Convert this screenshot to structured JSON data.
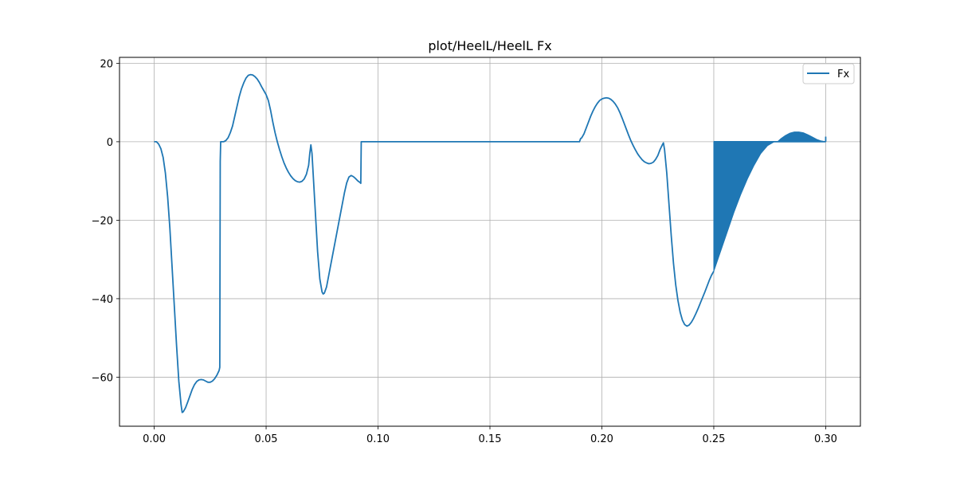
{
  "chart_data": {
    "type": "line",
    "title": "plot/HeelL/HeelL Fx",
    "xlabel": "",
    "ylabel": "",
    "xlim": [
      -0.0155,
      0.3155
    ],
    "ylim": [
      -72.5,
      21.5
    ],
    "grid": true,
    "legend_position": "top-right",
    "x_ticks": [
      0.0,
      0.05,
      0.1,
      0.15,
      0.2,
      0.25,
      0.3
    ],
    "x_tick_labels": [
      "0.00",
      "0.05",
      "0.10",
      "0.15",
      "0.20",
      "0.25",
      "0.30"
    ],
    "y_ticks": [
      20,
      0,
      -20,
      -40,
      -60
    ],
    "y_tick_labels": [
      "20",
      "0",
      "−20",
      "−40",
      "−60"
    ],
    "series": [
      {
        "name": "Fx",
        "color": "#1f77b4",
        "points": [
          [
            0.0,
            0.0
          ],
          [
            0.001,
            0.0
          ],
          [
            0.002,
            -0.6
          ],
          [
            0.003,
            -1.8
          ],
          [
            0.004,
            -4
          ],
          [
            0.005,
            -8
          ],
          [
            0.006,
            -14
          ],
          [
            0.007,
            -22
          ],
          [
            0.008,
            -32
          ],
          [
            0.009,
            -42
          ],
          [
            0.01,
            -52
          ],
          [
            0.011,
            -61
          ],
          [
            0.012,
            -67
          ],
          [
            0.0125,
            -69
          ],
          [
            0.013,
            -68.8
          ],
          [
            0.014,
            -67.8
          ],
          [
            0.015,
            -66.3
          ],
          [
            0.016,
            -64.7
          ],
          [
            0.017,
            -63.1
          ],
          [
            0.018,
            -61.9
          ],
          [
            0.019,
            -61.1
          ],
          [
            0.02,
            -60.7
          ],
          [
            0.021,
            -60.6
          ],
          [
            0.022,
            -60.7
          ],
          [
            0.023,
            -61.0
          ],
          [
            0.024,
            -61.3
          ],
          [
            0.025,
            -61.3
          ],
          [
            0.026,
            -61.0
          ],
          [
            0.027,
            -60.4
          ],
          [
            0.028,
            -59.5
          ],
          [
            0.029,
            -58.3
          ],
          [
            0.0293,
            -57.5
          ],
          [
            0.0295,
            -5
          ],
          [
            0.0297,
            0.0
          ],
          [
            0.031,
            0.0
          ],
          [
            0.032,
            0.3
          ],
          [
            0.033,
            1.0
          ],
          [
            0.034,
            2.3
          ],
          [
            0.035,
            4.0
          ],
          [
            0.036,
            6.5
          ],
          [
            0.037,
            9.0
          ],
          [
            0.038,
            11.5
          ],
          [
            0.039,
            13.5
          ],
          [
            0.04,
            15.0
          ],
          [
            0.041,
            16.2
          ],
          [
            0.042,
            16.9
          ],
          [
            0.043,
            17.1
          ],
          [
            0.044,
            17.0
          ],
          [
            0.045,
            16.6
          ],
          [
            0.046,
            16.0
          ],
          [
            0.047,
            15.1
          ],
          [
            0.048,
            14.0
          ],
          [
            0.049,
            13.0
          ],
          [
            0.05,
            12.0
          ],
          [
            0.051,
            10.5
          ],
          [
            0.052,
            8.0
          ],
          [
            0.053,
            5.0
          ],
          [
            0.054,
            2.3
          ],
          [
            0.055,
            0.0
          ],
          [
            0.056,
            -2.0
          ],
          [
            0.057,
            -3.8
          ],
          [
            0.058,
            -5.4
          ],
          [
            0.059,
            -6.7
          ],
          [
            0.06,
            -7.8
          ],
          [
            0.061,
            -8.7
          ],
          [
            0.062,
            -9.4
          ],
          [
            0.063,
            -9.9
          ],
          [
            0.064,
            -10.2
          ],
          [
            0.065,
            -10.3
          ],
          [
            0.066,
            -10.1
          ],
          [
            0.067,
            -9.5
          ],
          [
            0.068,
            -8.3
          ],
          [
            0.069,
            -6.0
          ],
          [
            0.0695,
            -3.0
          ],
          [
            0.07,
            -0.8
          ],
          [
            0.0705,
            -3.0
          ],
          [
            0.071,
            -8
          ],
          [
            0.072,
            -18
          ],
          [
            0.073,
            -28
          ],
          [
            0.074,
            -35
          ],
          [
            0.075,
            -38.3
          ],
          [
            0.0755,
            -38.8
          ],
          [
            0.076,
            -38.6
          ],
          [
            0.077,
            -37.0
          ],
          [
            0.078,
            -34.0
          ],
          [
            0.079,
            -31.0
          ],
          [
            0.08,
            -28.0
          ],
          [
            0.081,
            -25.0
          ],
          [
            0.082,
            -22.0
          ],
          [
            0.083,
            -19.0
          ],
          [
            0.084,
            -16.0
          ],
          [
            0.085,
            -13.0
          ],
          [
            0.086,
            -10.5
          ],
          [
            0.087,
            -9.0
          ],
          [
            0.088,
            -8.6
          ],
          [
            0.089,
            -8.9
          ],
          [
            0.09,
            -9.4
          ],
          [
            0.091,
            -10.0
          ],
          [
            0.092,
            -10.4
          ],
          [
            0.0923,
            -10.6
          ],
          [
            0.0925,
            0.0
          ],
          [
            0.1,
            0.0
          ],
          [
            0.15,
            0.0
          ],
          [
            0.19,
            0.0
          ],
          [
            0.1905,
            0.8
          ],
          [
            0.191,
            1.0
          ],
          [
            0.192,
            2.0
          ],
          [
            0.193,
            3.5
          ],
          [
            0.194,
            5.0
          ],
          [
            0.195,
            6.5
          ],
          [
            0.196,
            7.8
          ],
          [
            0.197,
            8.9
          ],
          [
            0.198,
            9.8
          ],
          [
            0.199,
            10.5
          ],
          [
            0.2,
            10.9
          ],
          [
            0.201,
            11.1
          ],
          [
            0.202,
            11.2
          ],
          [
            0.203,
            11.1
          ],
          [
            0.204,
            10.8
          ],
          [
            0.205,
            10.3
          ],
          [
            0.206,
            9.6
          ],
          [
            0.207,
            8.7
          ],
          [
            0.208,
            7.5
          ],
          [
            0.209,
            6.1
          ],
          [
            0.21,
            4.6
          ],
          [
            0.211,
            3.1
          ],
          [
            0.212,
            1.6
          ],
          [
            0.213,
            0.2
          ],
          [
            0.214,
            -1.0
          ],
          [
            0.215,
            -2.1
          ],
          [
            0.216,
            -3.1
          ],
          [
            0.217,
            -3.9
          ],
          [
            0.218,
            -4.6
          ],
          [
            0.219,
            -5.1
          ],
          [
            0.22,
            -5.4
          ],
          [
            0.221,
            -5.6
          ],
          [
            0.222,
            -5.5
          ],
          [
            0.223,
            -5.2
          ],
          [
            0.224,
            -4.5
          ],
          [
            0.225,
            -3.5
          ],
          [
            0.226,
            -2.0
          ],
          [
            0.227,
            -0.8
          ],
          [
            0.2275,
            -0.3
          ],
          [
            0.228,
            -2
          ],
          [
            0.229,
            -8
          ],
          [
            0.23,
            -16
          ],
          [
            0.231,
            -24
          ],
          [
            0.232,
            -31
          ],
          [
            0.233,
            -36.5
          ],
          [
            0.234,
            -40.5
          ],
          [
            0.235,
            -43.5
          ],
          [
            0.236,
            -45.5
          ],
          [
            0.237,
            -46.6
          ],
          [
            0.238,
            -47.0
          ],
          [
            0.239,
            -46.7
          ],
          [
            0.24,
            -46.0
          ],
          [
            0.241,
            -45.0
          ],
          [
            0.242,
            -43.8
          ],
          [
            0.243,
            -42.5
          ],
          [
            0.244,
            -41.1
          ],
          [
            0.245,
            -39.7
          ],
          [
            0.246,
            -38.3
          ],
          [
            0.247,
            -36.8
          ],
          [
            0.248,
            -35.3
          ],
          [
            0.249,
            -34.0
          ],
          [
            0.25,
            -33.0
          ]
        ],
        "oscillation": {
          "x_start": 0.25,
          "x_end": 0.3,
          "upper_value": 0.0,
          "lower_envelope": [
            [
              0.25,
              -33.0
            ],
            [
              0.253,
              -28.0
            ],
            [
              0.256,
              -23.0
            ],
            [
              0.259,
              -18.0
            ],
            [
              0.262,
              -13.5
            ],
            [
              0.265,
              -9.5
            ],
            [
              0.268,
              -6.0
            ],
            [
              0.271,
              -3.0
            ],
            [
              0.274,
              -1.0
            ],
            [
              0.277,
              0.0
            ],
            [
              0.2785,
              0.0
            ]
          ],
          "upper_envelope": [
            [
              0.2785,
              0.0
            ],
            [
              0.28,
              0.8
            ],
            [
              0.282,
              1.6
            ],
            [
              0.284,
              2.2
            ],
            [
              0.286,
              2.5
            ],
            [
              0.288,
              2.5
            ],
            [
              0.29,
              2.3
            ],
            [
              0.292,
              1.8
            ],
            [
              0.294,
              1.2
            ],
            [
              0.296,
              0.6
            ],
            [
              0.298,
              0.2
            ],
            [
              0.3,
              0.0
            ]
          ],
          "end_point": [
            0.3,
            1.3
          ]
        }
      }
    ]
  }
}
